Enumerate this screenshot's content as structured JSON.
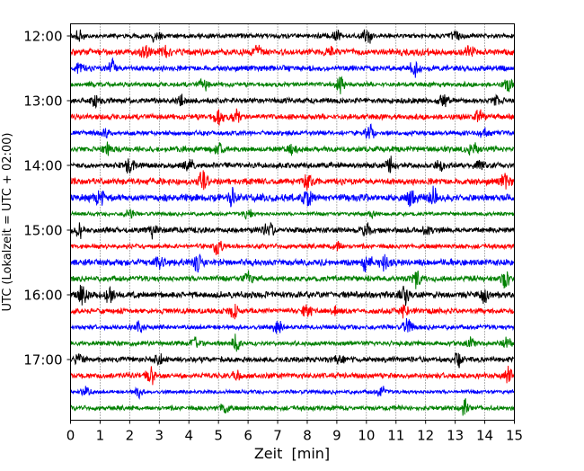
{
  "chart_data": {
    "type": "line",
    "title": "",
    "xlabel": "Zeit  [min]",
    "ylabel": "UTC (Lokalzeit = UTC + 02:00)",
    "xlim": [
      0,
      15
    ],
    "x_ticks": [
      "0",
      "1",
      "2",
      "3",
      "4",
      "5",
      "6",
      "7",
      "8",
      "9",
      "10",
      "11",
      "12",
      "13",
      "14",
      "15"
    ],
    "y_tick_labels": [
      "12:00",
      "13:00",
      "14:00",
      "15:00",
      "16:00",
      "17:00"
    ],
    "grid": "vertical dotted at each minute",
    "trace_interval_min": 15,
    "colors": [
      "#000000",
      "#ff0000",
      "#0000ff",
      "#008000"
    ],
    "traces": [
      {
        "start": "12:00",
        "noise": 0.25,
        "events": [
          [
            0.3,
            0.6
          ],
          [
            2.9,
            0.6
          ],
          [
            9.0,
            0.5
          ],
          [
            10.0,
            1.0
          ],
          [
            13.0,
            0.6
          ]
        ]
      },
      {
        "start": "12:15",
        "noise": 0.35,
        "events": [
          [
            2.5,
            0.6
          ],
          [
            3.2,
            0.5
          ],
          [
            6.3,
            0.6
          ],
          [
            8.8,
            0.5
          ],
          [
            13.5,
            0.5
          ]
        ]
      },
      {
        "start": "12:30",
        "noise": 0.3,
        "events": [
          [
            0.3,
            0.6
          ],
          [
            1.4,
            0.8
          ],
          [
            11.6,
            0.7
          ]
        ]
      },
      {
        "start": "12:45",
        "noise": 0.25,
        "events": [
          [
            4.5,
            0.6
          ],
          [
            9.1,
            0.8
          ],
          [
            14.8,
            0.6
          ]
        ]
      },
      {
        "start": "13:00",
        "noise": 0.3,
        "events": [
          [
            0.8,
            0.5
          ],
          [
            3.8,
            0.5
          ],
          [
            12.6,
            0.6
          ],
          [
            14.4,
            0.5
          ]
        ]
      },
      {
        "start": "13:15",
        "noise": 0.3,
        "events": [
          [
            5.0,
            0.9
          ],
          [
            5.6,
            0.6
          ],
          [
            13.8,
            0.6
          ]
        ]
      },
      {
        "start": "13:30",
        "noise": 0.25,
        "events": [
          [
            1.2,
            0.6
          ],
          [
            10.1,
            0.8
          ],
          [
            14.0,
            0.5
          ]
        ]
      },
      {
        "start": "13:45",
        "noise": 0.3,
        "events": [
          [
            1.2,
            0.5
          ],
          [
            5.0,
            0.7
          ],
          [
            7.5,
            0.5
          ],
          [
            13.6,
            1.0
          ]
        ]
      },
      {
        "start": "14:00",
        "noise": 0.3,
        "events": [
          [
            2.0,
            0.8
          ],
          [
            4.0,
            0.6
          ],
          [
            10.8,
            0.7
          ],
          [
            12.5,
            0.5
          ],
          [
            13.8,
            0.6
          ]
        ]
      },
      {
        "start": "14:15",
        "noise": 0.35,
        "events": [
          [
            4.5,
            1.0
          ],
          [
            8.0,
            0.8
          ],
          [
            14.7,
            0.7
          ]
        ]
      },
      {
        "start": "14:30",
        "noise": 0.4,
        "events": [
          [
            1.0,
            0.7
          ],
          [
            5.5,
            0.8
          ],
          [
            8.0,
            0.9
          ],
          [
            11.5,
            0.9
          ],
          [
            12.3,
            1.0
          ]
        ]
      },
      {
        "start": "14:45",
        "noise": 0.2,
        "events": [
          [
            2.0,
            0.5
          ],
          [
            6.0,
            0.5
          ],
          [
            10.2,
            0.5
          ]
        ]
      },
      {
        "start": "15:00",
        "noise": 0.3,
        "events": [
          [
            0.3,
            0.6
          ],
          [
            2.8,
            0.7
          ],
          [
            6.7,
            0.8
          ],
          [
            10.0,
            0.7
          ],
          [
            12.0,
            0.5
          ]
        ]
      },
      {
        "start": "15:15",
        "noise": 0.25,
        "events": [
          [
            5.0,
            0.9
          ],
          [
            9.0,
            0.5
          ]
        ]
      },
      {
        "start": "15:30",
        "noise": 0.35,
        "events": [
          [
            3.0,
            0.6
          ],
          [
            4.3,
            0.9
          ],
          [
            10.0,
            0.9
          ],
          [
            10.6,
            0.8
          ]
        ]
      },
      {
        "start": "15:45",
        "noise": 0.3,
        "events": [
          [
            6.0,
            0.6
          ],
          [
            11.7,
            0.9
          ],
          [
            14.7,
            0.7
          ]
        ]
      },
      {
        "start": "16:00",
        "noise": 0.35,
        "events": [
          [
            0.4,
            1.0
          ],
          [
            1.3,
            0.7
          ],
          [
            11.3,
            1.0
          ],
          [
            14.0,
            0.6
          ]
        ]
      },
      {
        "start": "16:15",
        "noise": 0.3,
        "events": [
          [
            5.5,
            0.6
          ],
          [
            8.0,
            0.7
          ],
          [
            9.0,
            0.5
          ],
          [
            11.3,
            0.6
          ]
        ]
      },
      {
        "start": "16:30",
        "noise": 0.25,
        "events": [
          [
            2.3,
            0.6
          ],
          [
            7.0,
            0.7
          ],
          [
            11.4,
            0.9
          ]
        ]
      },
      {
        "start": "16:45",
        "noise": 0.25,
        "events": [
          [
            4.2,
            0.6
          ],
          [
            5.6,
            0.9
          ],
          [
            13.5,
            0.5
          ],
          [
            14.8,
            0.6
          ]
        ]
      },
      {
        "start": "17:00",
        "noise": 0.3,
        "events": [
          [
            0.3,
            0.5
          ],
          [
            3.0,
            0.6
          ],
          [
            9.1,
            0.6
          ],
          [
            13.1,
            0.9
          ]
        ]
      },
      {
        "start": "17:15",
        "noise": 0.3,
        "events": [
          [
            2.7,
            1.0
          ],
          [
            5.6,
            0.5
          ],
          [
            14.8,
            0.6
          ]
        ]
      },
      {
        "start": "17:30",
        "noise": 0.2,
        "events": [
          [
            0.5,
            0.6
          ],
          [
            2.3,
            0.5
          ],
          [
            10.5,
            0.7
          ]
        ]
      },
      {
        "start": "17:45",
        "noise": 0.25,
        "events": [
          [
            5.2,
            0.6
          ],
          [
            13.3,
            0.8
          ]
        ]
      }
    ]
  }
}
